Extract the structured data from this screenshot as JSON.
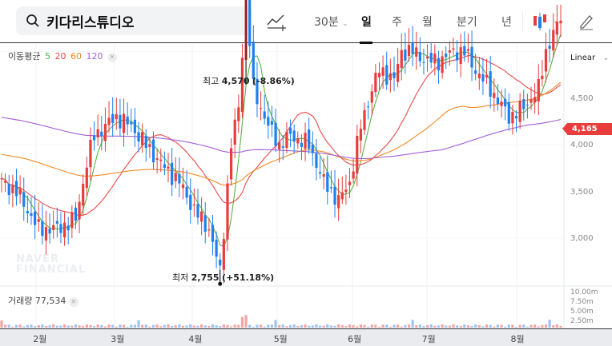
{
  "search": {
    "value": "키다리스튜디오",
    "icon": "search-icon"
  },
  "toolbar": {
    "interval": "30분",
    "day": "일",
    "week": "주",
    "month": "월",
    "quarter": "분기",
    "year": "년"
  },
  "indicator": {
    "label": "이동평균",
    "periods": [
      "5",
      "20",
      "60",
      "120"
    ],
    "colors": [
      "#5bb548",
      "#e84a4a",
      "#f08a24",
      "#a35ed6"
    ]
  },
  "scale": "Linear",
  "current_price": "4,165",
  "high_label": {
    "prefix": "최고",
    "value": "4,570",
    "pct": "(-8.86%)"
  },
  "low_label": {
    "prefix": "최저",
    "value": "2,755",
    "pct": "(+51.18%)"
  },
  "watermark": [
    "NAVER",
    "FINANCIAL"
  ],
  "volume": {
    "label": "거래량",
    "value": "77,534",
    "ticks": [
      "10.00m",
      "7.50m",
      "5.00m",
      "2.50m"
    ]
  },
  "chart_data": {
    "type": "candlestick",
    "y_ticks": [
      3000,
      3500,
      4000,
      4500
    ],
    "y_tick_labels": [
      "3,000",
      "3,500",
      "4,000",
      "4,500"
    ],
    "ylim": [
      2650,
      4850
    ],
    "x_tick_labels": [
      "2월",
      "3월",
      "4월",
      "5월",
      "6월",
      "7월",
      "8월"
    ],
    "x_tick_index": [
      10,
      31,
      52,
      75,
      95,
      115,
      139
    ],
    "num_days": 152,
    "price_path": [
      [
        0,
        3300
      ],
      [
        4,
        3250
      ],
      [
        10,
        3050
      ],
      [
        15,
        3050
      ],
      [
        20,
        3100
      ],
      [
        23,
        3400
      ],
      [
        25,
        3550
      ],
      [
        28,
        3600
      ],
      [
        31,
        3650
      ],
      [
        35,
        3600
      ],
      [
        39,
        3500
      ],
      [
        43,
        3400
      ],
      [
        48,
        3300
      ],
      [
        52,
        3150
      ],
      [
        56,
        3050
      ],
      [
        59,
        2820
      ],
      [
        62,
        3500
      ],
      [
        64,
        3700
      ],
      [
        66,
        4300
      ],
      [
        68,
        3800
      ],
      [
        72,
        3600
      ],
      [
        75,
        3500
      ],
      [
        78,
        3550
      ],
      [
        83,
        3500
      ],
      [
        87,
        3300
      ],
      [
        91,
        3200
      ],
      [
        94,
        3300
      ],
      [
        97,
        3600
      ],
      [
        100,
        3800
      ],
      [
        102,
        3900
      ],
      [
        106,
        3850
      ],
      [
        108,
        4000
      ],
      [
        111,
        4000
      ],
      [
        115,
        3950
      ],
      [
        118,
        3950
      ],
      [
        122,
        4000
      ],
      [
        125,
        4000
      ],
      [
        128,
        3900
      ],
      [
        132,
        3800
      ],
      [
        137,
        3650
      ],
      [
        141,
        3700
      ],
      [
        145,
        3800
      ],
      [
        147,
        4000
      ],
      [
        149,
        4100
      ],
      [
        151,
        4165
      ]
    ],
    "high": {
      "index": 66,
      "value": 4570
    },
    "low": {
      "index": 59,
      "value": 2755
    },
    "up_color": "#e93c3c",
    "down_color": "#1e7ff0"
  }
}
